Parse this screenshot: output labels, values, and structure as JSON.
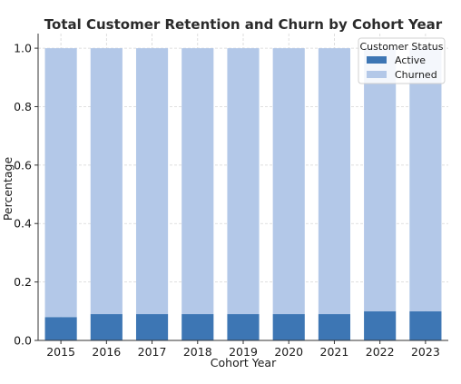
{
  "chart_data": {
    "type": "bar",
    "stacked": true,
    "title": "Total Customer Retention and Churn by Cohort Year",
    "xlabel": "Cohort Year",
    "ylabel": "Percentage",
    "categories": [
      "2015",
      "2016",
      "2017",
      "2018",
      "2019",
      "2020",
      "2021",
      "2022",
      "2023"
    ],
    "series": [
      {
        "name": "Active",
        "color": "#3d76b4",
        "values": [
          0.08,
          0.09,
          0.09,
          0.09,
          0.09,
          0.09,
          0.09,
          0.1,
          0.1
        ]
      },
      {
        "name": "Churned",
        "color": "#b3c8e8",
        "values": [
          0.92,
          0.91,
          0.91,
          0.91,
          0.91,
          0.91,
          0.91,
          0.9,
          0.9
        ]
      }
    ],
    "ylim": [
      0,
      1.05
    ],
    "yticks": [
      "0.0",
      "0.2",
      "0.4",
      "0.6",
      "0.8",
      "1.0"
    ],
    "grid": true,
    "legend": {
      "title": "Customer Status",
      "placement": "top-right"
    }
  }
}
